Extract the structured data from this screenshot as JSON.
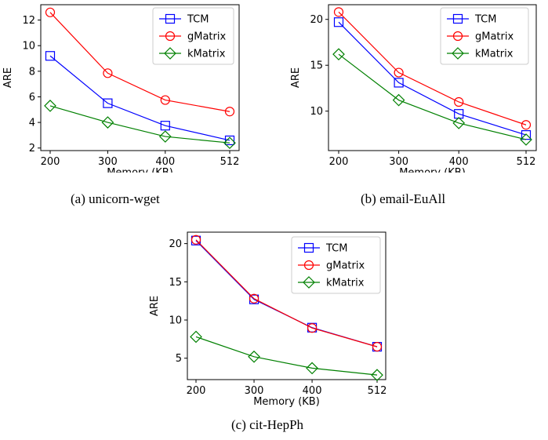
{
  "legend_labels": [
    "TCM",
    "gMatrix",
    "kMatrix"
  ],
  "series_colors": {
    "TCM": "#0000ff",
    "gMatrix": "#ff0000",
    "kMatrix": "#008000"
  },
  "series_markers": {
    "TCM": "square",
    "gMatrix": "circle",
    "kMatrix": "diamond"
  },
  "chart_data": [
    {
      "type": "line",
      "caption": "(a) unicorn-wget",
      "xlabel": "Memory (KB)",
      "ylabel": "ARE",
      "x": [
        200,
        300,
        400,
        512
      ],
      "x_ticks": [
        "200",
        "300",
        "400",
        "512"
      ],
      "y_ticks": [
        2,
        4,
        6,
        8,
        10,
        12
      ],
      "ylim": [
        1.8,
        13.2
      ],
      "grid": false,
      "legend_position": "top-right",
      "series": [
        {
          "name": "TCM",
          "values": [
            9.2,
            5.5,
            3.75,
            2.6
          ]
        },
        {
          "name": "gMatrix",
          "values": [
            12.6,
            7.85,
            5.75,
            4.85
          ]
        },
        {
          "name": "kMatrix",
          "values": [
            5.3,
            4.0,
            2.9,
            2.4
          ]
        }
      ]
    },
    {
      "type": "line",
      "caption": "(b) email-EuAll",
      "xlabel": "Memory (KB)",
      "ylabel": "ARE",
      "x": [
        200,
        300,
        400,
        512
      ],
      "x_ticks": [
        "200",
        "300",
        "400",
        "512"
      ],
      "y_ticks": [
        10,
        15,
        20
      ],
      "ylim": [
        5.7,
        21.6
      ],
      "grid": false,
      "legend_position": "top-right",
      "series": [
        {
          "name": "TCM",
          "values": [
            19.7,
            13.1,
            9.7,
            7.4
          ]
        },
        {
          "name": "gMatrix",
          "values": [
            20.8,
            14.2,
            11.0,
            8.5
          ]
        },
        {
          "name": "kMatrix",
          "values": [
            16.2,
            11.2,
            8.7,
            6.9
          ]
        }
      ]
    },
    {
      "type": "line",
      "caption": "(c) cit-HepPh",
      "xlabel": "Memory (KB)",
      "ylabel": "ARE",
      "x": [
        200,
        300,
        400,
        512
      ],
      "x_ticks": [
        "200",
        "300",
        "400",
        "512"
      ],
      "y_ticks": [
        5,
        10,
        15,
        20
      ],
      "ylim": [
        2.2,
        21.5
      ],
      "grid": false,
      "legend_position": "top-right",
      "series": [
        {
          "name": "TCM",
          "values": [
            20.4,
            12.7,
            9.0,
            6.5
          ]
        },
        {
          "name": "gMatrix",
          "values": [
            20.5,
            12.8,
            8.95,
            6.5
          ]
        },
        {
          "name": "kMatrix",
          "values": [
            7.8,
            5.2,
            3.7,
            2.8
          ]
        }
      ]
    }
  ]
}
